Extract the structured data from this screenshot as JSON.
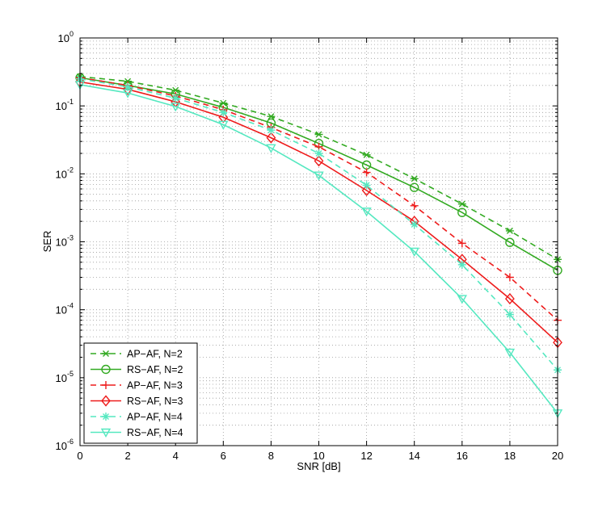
{
  "chart_data": {
    "type": "line",
    "title": "",
    "xlabel": "SNR [dB]",
    "ylabel": "SER",
    "xlim": [
      0,
      20
    ],
    "ylim": [
      1e-06,
      1
    ],
    "yscale": "log",
    "grid": true,
    "legend_position": "bottom-left",
    "x": [
      0,
      2,
      4,
      6,
      8,
      10,
      12,
      14,
      16,
      18,
      20
    ],
    "x_ticks": [
      "0",
      "2",
      "4",
      "6",
      "8",
      "10",
      "12",
      "14",
      "16",
      "18",
      "20"
    ],
    "y_ticks": [
      {
        "base": "10",
        "exp": "-6",
        "value": 1e-06
      },
      {
        "base": "10",
        "exp": "-5",
        "value": 1e-05
      },
      {
        "base": "10",
        "exp": "-4",
        "value": 0.0001
      },
      {
        "base": "10",
        "exp": "-3",
        "value": 0.001
      },
      {
        "base": "10",
        "exp": "-2",
        "value": 0.01
      },
      {
        "base": "10",
        "exp": "-1",
        "value": 0.1
      },
      {
        "base": "10",
        "exp": "0",
        "value": 1
      }
    ],
    "series": [
      {
        "name": "AP−AF, N=2",
        "color": "#33aa22",
        "dash": "dashed",
        "marker": "x-star",
        "values": [
          0.27,
          0.23,
          0.17,
          0.11,
          0.07,
          0.038,
          0.019,
          0.0085,
          0.0036,
          0.00145,
          0.00055
        ]
      },
      {
        "name": "RS−AF, N=2",
        "color": "#33aa22",
        "dash": "solid",
        "marker": "circle",
        "values": [
          0.26,
          0.2,
          0.15,
          0.095,
          0.056,
          0.028,
          0.0135,
          0.0063,
          0.0027,
          0.00098,
          0.00038
        ]
      },
      {
        "name": "AP−AF, N=3",
        "color": "#ee1c1c",
        "dash": "dashed",
        "marker": "plus",
        "values": [
          0.26,
          0.2,
          0.14,
          0.088,
          0.048,
          0.025,
          0.0105,
          0.0034,
          0.00095,
          0.0003,
          7e-05
        ]
      },
      {
        "name": "RS−AF, N=3",
        "color": "#ee1c1c",
        "dash": "solid",
        "marker": "diamond",
        "values": [
          0.225,
          0.175,
          0.115,
          0.068,
          0.034,
          0.0155,
          0.0057,
          0.002,
          0.00055,
          0.000145,
          3.3e-05
        ]
      },
      {
        "name": "AP−AF, N=4",
        "color": "#55e8c0",
        "dash": "dashed",
        "marker": "asterisk",
        "values": [
          0.25,
          0.19,
          0.13,
          0.08,
          0.044,
          0.02,
          0.0068,
          0.0018,
          0.00046,
          8.5e-05,
          1.3e-05
        ]
      },
      {
        "name": "RS−AF, N=4",
        "color": "#55e8c0",
        "dash": "solid",
        "marker": "triangle-down",
        "values": [
          0.205,
          0.155,
          0.098,
          0.053,
          0.024,
          0.0095,
          0.0028,
          0.00072,
          0.000145,
          2.35e-05,
          3e-06
        ]
      }
    ]
  }
}
